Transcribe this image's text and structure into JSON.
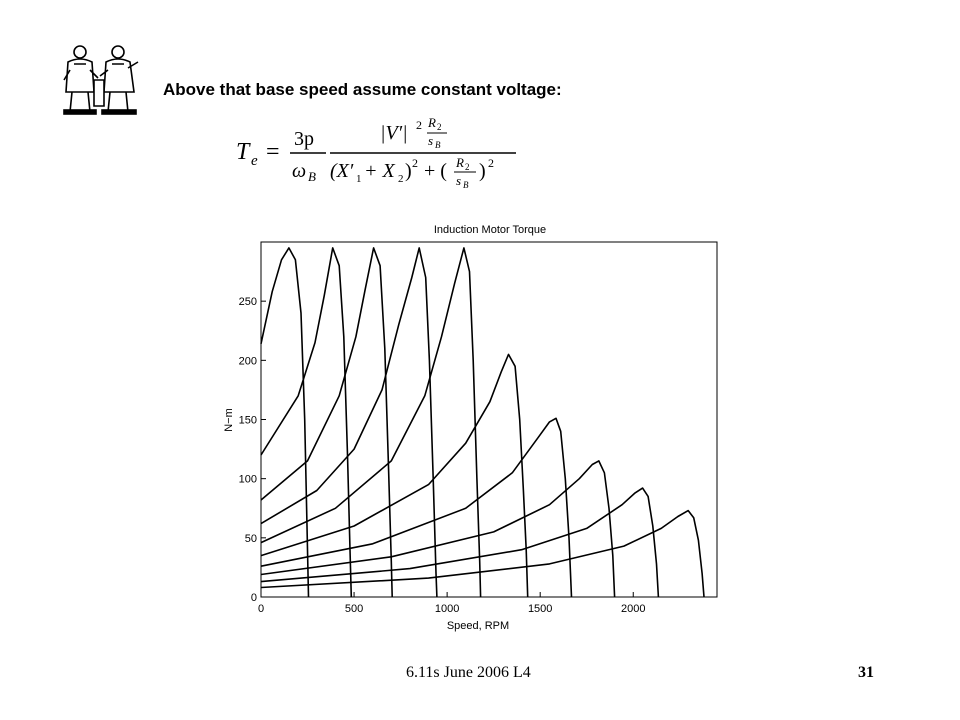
{
  "slide": {
    "heading": "Above that base speed assume constant voltage:",
    "footer_left": "6.11s June 2006 L4",
    "page_number": "31"
  },
  "logo": {
    "icon": "two-scholars-logo-icon"
  },
  "formula": {
    "lhs": "T",
    "lhs_sub": "e",
    "eq": "=",
    "coef_num": "3p",
    "coef_den": "ω",
    "coef_den_sub": "B"
  },
  "chart_data": {
    "type": "line",
    "title": "Induction Motor Torque",
    "xlabel": "Speed, RPM",
    "ylabel": "N−m",
    "xlim": [
      0,
      2450
    ],
    "ylim": [
      0,
      300
    ],
    "xticks": [
      0,
      500,
      1000,
      1500,
      2000
    ],
    "yticks": [
      0,
      50,
      100,
      150,
      200,
      250
    ],
    "grid": false,
    "legend": "none",
    "line_color": "#000000",
    "series": [
      {
        "points": [
          [
            0,
            214
          ],
          [
            60,
            258
          ],
          [
            110,
            285
          ],
          [
            150,
            295
          ],
          [
            185,
            285
          ],
          [
            215,
            240
          ],
          [
            235,
            150
          ],
          [
            247,
            60
          ],
          [
            255,
            0
          ]
        ]
      },
      {
        "points": [
          [
            0,
            120
          ],
          [
            200,
            170
          ],
          [
            290,
            215
          ],
          [
            340,
            255
          ],
          [
            385,
            295
          ],
          [
            420,
            280
          ],
          [
            445,
            220
          ],
          [
            465,
            120
          ],
          [
            478,
            40
          ],
          [
            485,
            0
          ]
        ]
      },
      {
        "points": [
          [
            0,
            82
          ],
          [
            250,
            115
          ],
          [
            420,
            170
          ],
          [
            510,
            220
          ],
          [
            560,
            260
          ],
          [
            605,
            295
          ],
          [
            640,
            280
          ],
          [
            665,
            210
          ],
          [
            685,
            110
          ],
          [
            700,
            30
          ],
          [
            705,
            0
          ]
        ]
      },
      {
        "points": [
          [
            0,
            62
          ],
          [
            300,
            90
          ],
          [
            500,
            125
          ],
          [
            650,
            175
          ],
          [
            740,
            230
          ],
          [
            810,
            270
          ],
          [
            850,
            295
          ],
          [
            885,
            270
          ],
          [
            905,
            200
          ],
          [
            925,
            100
          ],
          [
            940,
            20
          ],
          [
            945,
            0
          ]
        ]
      },
      {
        "points": [
          [
            0,
            46
          ],
          [
            400,
            75
          ],
          [
            700,
            115
          ],
          [
            880,
            170
          ],
          [
            970,
            220
          ],
          [
            1040,
            265
          ],
          [
            1090,
            295
          ],
          [
            1120,
            275
          ],
          [
            1140,
            200
          ],
          [
            1160,
            100
          ],
          [
            1175,
            30
          ],
          [
            1180,
            0
          ]
        ]
      },
      {
        "points": [
          [
            0,
            35
          ],
          [
            500,
            60
          ],
          [
            900,
            95
          ],
          [
            1100,
            130
          ],
          [
            1230,
            165
          ],
          [
            1290,
            190
          ],
          [
            1330,
            205
          ],
          [
            1365,
            195
          ],
          [
            1390,
            150
          ],
          [
            1410,
            90
          ],
          [
            1425,
            40
          ],
          [
            1433,
            0
          ]
        ]
      },
      {
        "points": [
          [
            0,
            26
          ],
          [
            600,
            45
          ],
          [
            1100,
            75
          ],
          [
            1350,
            105
          ],
          [
            1490,
            135
          ],
          [
            1550,
            148
          ],
          [
            1585,
            151
          ],
          [
            1610,
            140
          ],
          [
            1635,
            100
          ],
          [
            1655,
            50
          ],
          [
            1668,
            0
          ]
        ]
      },
      {
        "points": [
          [
            0,
            19
          ],
          [
            700,
            34
          ],
          [
            1250,
            55
          ],
          [
            1550,
            78
          ],
          [
            1710,
            100
          ],
          [
            1780,
            112
          ],
          [
            1815,
            115
          ],
          [
            1845,
            105
          ],
          [
            1870,
            75
          ],
          [
            1890,
            35
          ],
          [
            1900,
            0
          ]
        ]
      },
      {
        "points": [
          [
            0,
            13
          ],
          [
            800,
            24
          ],
          [
            1400,
            40
          ],
          [
            1750,
            58
          ],
          [
            1940,
            78
          ],
          [
            2010,
            88
          ],
          [
            2050,
            92
          ],
          [
            2080,
            85
          ],
          [
            2105,
            60
          ],
          [
            2125,
            28
          ],
          [
            2135,
            0
          ]
        ]
      },
      {
        "points": [
          [
            0,
            8
          ],
          [
            900,
            16
          ],
          [
            1550,
            28
          ],
          [
            1950,
            43
          ],
          [
            2150,
            58
          ],
          [
            2240,
            68
          ],
          [
            2295,
            73
          ],
          [
            2325,
            67
          ],
          [
            2350,
            48
          ],
          [
            2370,
            20
          ],
          [
            2380,
            0
          ]
        ]
      }
    ]
  }
}
